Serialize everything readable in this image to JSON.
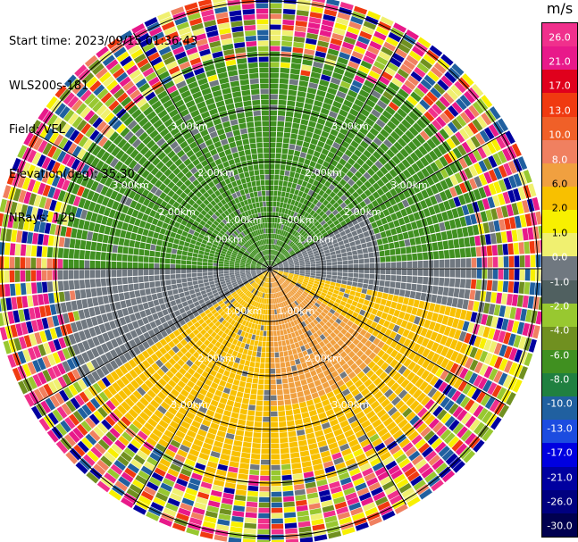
{
  "info": {
    "start_time": "Start time: 2023/09/15 01:36:43",
    "instrument": "WLS200s-181",
    "field": "Field: VEL",
    "elevation": "Elevation(deg): 35.30",
    "nrays": "NRays: 120"
  },
  "colorbar": {
    "unit": "m/s",
    "ticks": [
      "26.0",
      "21.0",
      "17.0",
      "13.0",
      "10.0",
      "8.0",
      "6.0",
      "2.0",
      "1.0",
      "0.0",
      "-1.0",
      "-2.0",
      "-4.0",
      "-6.0",
      "-8.0",
      "-10.0",
      "-13.0",
      "-17.0",
      "-21.0",
      "-26.0",
      "-30.0"
    ],
    "colors": [
      "#f0308c",
      "#e8198a",
      "#e0001c",
      "#f03a10",
      "#f06028",
      "#f08060",
      "#f0a040",
      "#f8c000",
      "#f8f000",
      "#f0f070",
      "#707880",
      "#506060",
      "#98c830",
      "#709020",
      "#409020",
      "#208040",
      "#2060a0",
      "#1c4ce0",
      "#0000e0",
      "#0000a0",
      "#000080",
      "#000050"
    ]
  },
  "range_rings": {
    "labels": [
      "1.00km",
      "2.00km",
      "3.00km",
      "1.00km",
      "2.00km",
      "3.00km",
      "1.00km",
      "2.00km",
      "3.00km",
      "1.00km",
      "2.00km",
      "3.00km",
      "1.00km",
      "2.00km",
      "3.00km",
      "1.00km",
      "2.00km",
      "3.00km"
    ]
  },
  "ppi": {
    "rays": 120,
    "color_theme": {
      "north_west": "#409020",
      "east_south": "#f8c000",
      "south_east_orange": "#f0a040",
      "west_gray": "#707880",
      "outer_noise": [
        "#e8198a",
        "#f03a10",
        "#f8f000",
        "#0000a0",
        "#709020",
        "#98c830",
        "#f0f070",
        "#f08060",
        "#2060a0",
        "#f0308c"
      ]
    }
  }
}
